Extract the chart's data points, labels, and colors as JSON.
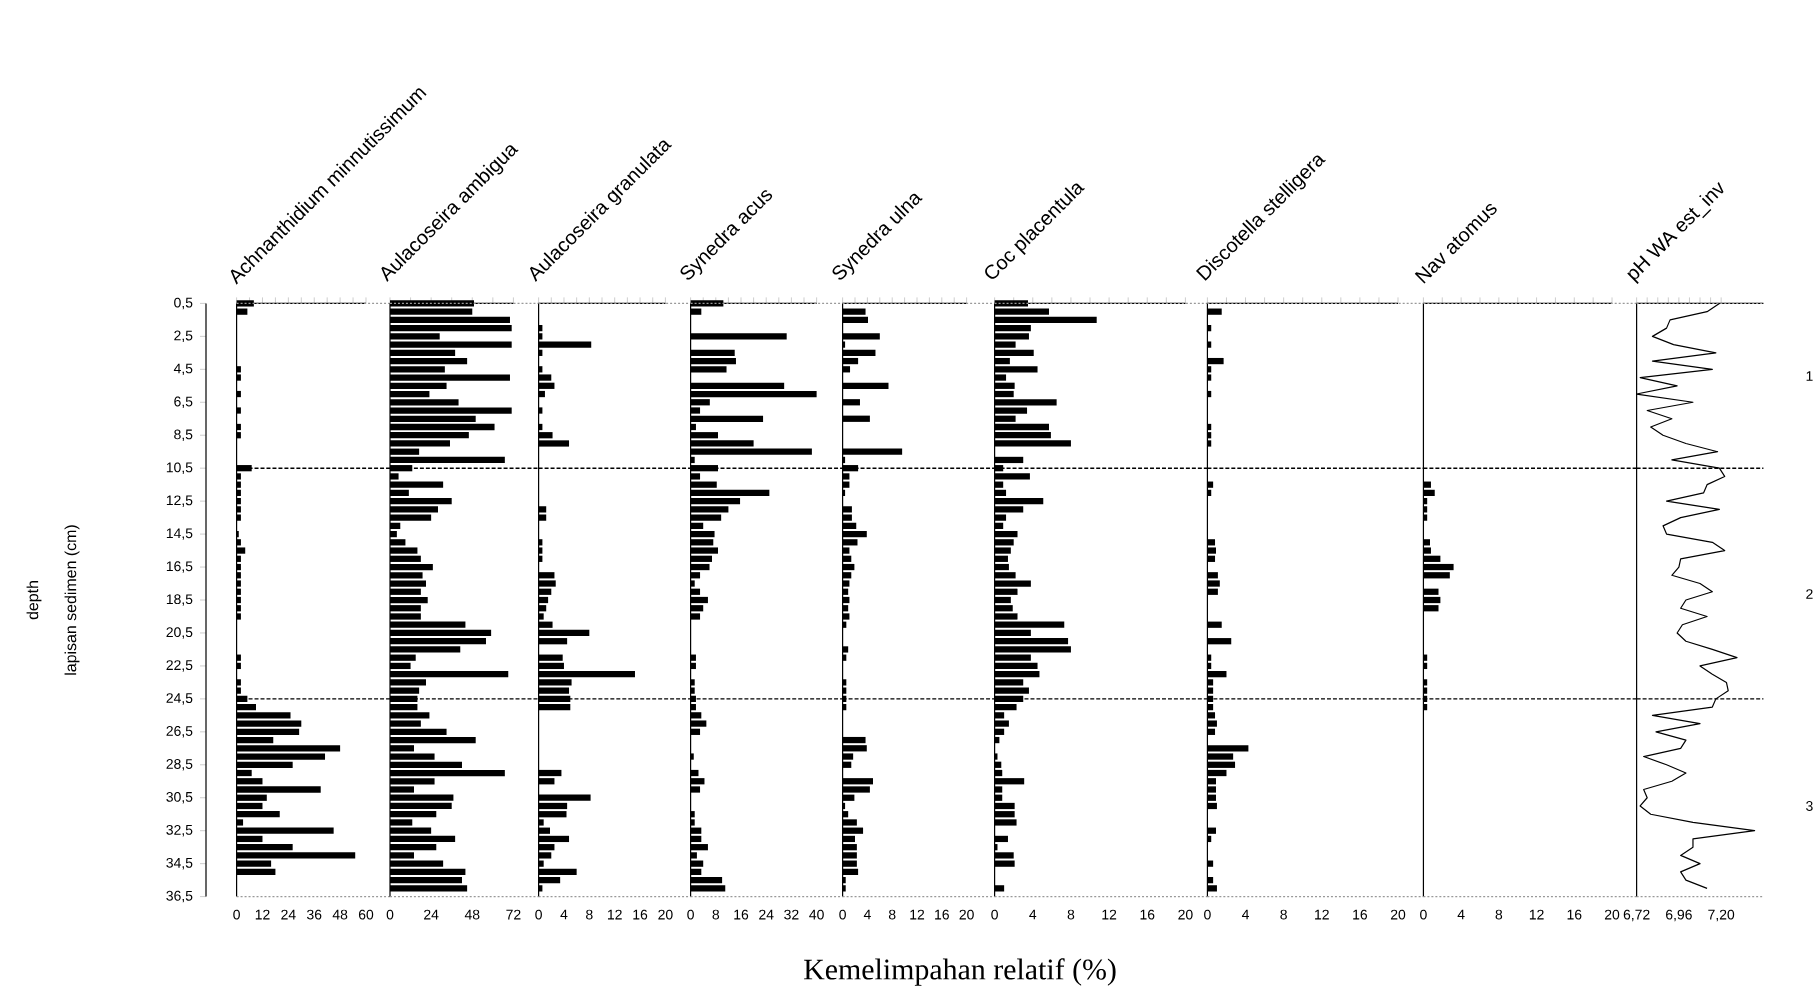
{
  "chart_data": [
    {
      "type": "bar",
      "orientation": "horizontal",
      "title": "Achnanthidium minnutissimum",
      "ylabel": "lapisan sedimen (cm)",
      "annotations": [
        "depth"
      ],
      "color": "#000000",
      "x": [
        0.5,
        1,
        1.5,
        2,
        2.5,
        3,
        3.5,
        4,
        4.5,
        5,
        5.5,
        6,
        6.5,
        7,
        7.5,
        8,
        8.5,
        9,
        9.5,
        10,
        10.5,
        11,
        11.5,
        12,
        12.5,
        13,
        13.5,
        14,
        14.5,
        15,
        15.5,
        16,
        16.5,
        17,
        17.5,
        18,
        18.5,
        19,
        19.5,
        20,
        20.5,
        21,
        21.5,
        22,
        22.5,
        23,
        23.5,
        24,
        24.5,
        25,
        25.5,
        26,
        26.5,
        27,
        27.5,
        28,
        28.5,
        29,
        29.5,
        30,
        30.5,
        31,
        31.5,
        32,
        32.5,
        33,
        33.5,
        34,
        34.5,
        35,
        35.5,
        36
      ],
      "values": [
        8,
        5,
        0,
        0,
        0,
        0,
        0,
        0,
        2,
        2,
        0,
        2,
        0,
        2,
        0,
        2,
        2,
        0,
        0,
        0,
        7,
        2,
        2,
        2,
        2,
        2,
        2,
        0,
        1,
        2,
        4,
        2,
        2,
        2,
        2,
        2,
        2,
        2,
        2,
        0,
        0,
        0,
        0,
        2,
        2,
        0,
        2,
        2,
        5,
        9,
        25,
        30,
        29,
        17,
        48,
        41,
        26,
        7,
        12,
        39,
        14,
        12,
        20,
        3,
        45,
        12,
        26,
        55,
        16,
        18,
        0,
        0
      ],
      "xlim": [
        0,
        60
      ],
      "xticks": [
        0,
        {
          "value": 6,
          "label": null
        },
        12,
        {
          "value": 18,
          "label": null
        },
        24,
        {
          "value": 30,
          "label": null
        },
        36,
        {
          "value": 42,
          "label": null
        },
        48,
        {
          "value": 54,
          "label": null
        },
        60
      ],
      "ylim": [
        36.5,
        0.5
      ],
      "yticks": [
        {
          "value": 0.5,
          "label": "0,5"
        },
        {
          "value": 2.5,
          "label": "2,5"
        },
        {
          "value": 4.5,
          "label": "4,5"
        },
        {
          "value": 6.5,
          "label": "6,5"
        },
        {
          "value": 8.5,
          "label": "8,5"
        },
        {
          "value": 10.5,
          "label": "10,5"
        },
        {
          "value": 12.5,
          "label": "12,5"
        },
        {
          "value": 14.5,
          "label": "14,5"
        },
        {
          "value": 16.5,
          "label": "16,5"
        },
        {
          "value": 18.5,
          "label": "18,5"
        },
        {
          "value": 20.5,
          "label": "20,5"
        },
        {
          "value": 22.5,
          "label": "22,5"
        },
        {
          "value": 24.5,
          "label": "24,5"
        },
        {
          "value": 26.5,
          "label": "26,5"
        },
        {
          "value": 28.5,
          "label": "28,5"
        },
        {
          "value": 30.5,
          "label": "30,5"
        },
        {
          "value": 32.5,
          "label": "32,5"
        },
        {
          "value": 34.5,
          "label": "34,5"
        },
        {
          "value": 36.5,
          "label": "36,5"
        }
      ],
      "ref_lines": [
        {
          "axis": "y",
          "value": 10.5,
          "line_style": "dashed"
        },
        {
          "axis": "y",
          "value": 24.5,
          "line_style": "dashed"
        },
        {
          "axis": "y",
          "value": 0.5,
          "line_style": "dotted",
          "color": "#999999"
        },
        {
          "axis": "y",
          "value": 36.5,
          "line_style": "dotted",
          "color": "#999999"
        }
      ]
    },
    {
      "type": "bar",
      "orientation": "horizontal",
      "title": "Aulacoseira ambigua",
      "color": "#000000",
      "x": [
        0.5,
        1,
        1.5,
        2,
        2.5,
        3,
        3.5,
        4,
        4.5,
        5,
        5.5,
        6,
        6.5,
        7,
        7.5,
        8,
        8.5,
        9,
        9.5,
        10,
        10.5,
        11,
        11.5,
        12,
        12.5,
        13,
        13.5,
        14,
        14.5,
        15,
        15.5,
        16,
        16.5,
        17,
        17.5,
        18,
        18.5,
        19,
        19.5,
        20,
        20.5,
        21,
        21.5,
        22,
        22.5,
        23,
        23.5,
        24,
        24.5,
        25,
        25.5,
        26,
        26.5,
        27,
        27.5,
        28,
        28.5,
        29,
        29.5,
        30,
        30.5,
        31,
        31.5,
        32,
        32.5,
        33,
        33.5,
        34,
        34.5,
        35,
        35.5,
        36
      ],
      "values": [
        49,
        48,
        70,
        71,
        29,
        71,
        38,
        45,
        32,
        70,
        33,
        23,
        40,
        71,
        50,
        61,
        46,
        35,
        17,
        67,
        13,
        5,
        31,
        11,
        36,
        28,
        24,
        6,
        4,
        9,
        16,
        18,
        25,
        19,
        21,
        18,
        22,
        18,
        18,
        44,
        59,
        56,
        41,
        15,
        12,
        69,
        21,
        17,
        16,
        16,
        23,
        18,
        33,
        50,
        14,
        26,
        42,
        67,
        26,
        14,
        37,
        36,
        27,
        13,
        24,
        38,
        27,
        14,
        31,
        44,
        42,
        45
      ],
      "xlim": [
        0,
        72
      ],
      "xticks": [
        0,
        {
          "value": 12,
          "label": null
        },
        24,
        {
          "value": 36,
          "label": null
        },
        48,
        {
          "value": 60,
          "label": null
        },
        72
      ],
      "ylim": [
        36.5,
        0.5
      ],
      "tick_labels": "x",
      "ref_lines": [
        {
          "axis": "y",
          "value": 10.5,
          "line_style": "dashed"
        },
        {
          "axis": "y",
          "value": 24.5,
          "line_style": "dashed"
        },
        {
          "axis": "y",
          "value": 0.5,
          "line_style": "dotted",
          "color": "#999999"
        },
        {
          "axis": "y",
          "value": 36.5,
          "line_style": "dotted",
          "color": "#999999"
        }
      ]
    },
    {
      "type": "bar",
      "orientation": "horizontal",
      "title": "Aulacoseira granulata",
      "color": "#000000",
      "x": [
        0.5,
        1,
        1.5,
        2,
        2.5,
        3,
        3.5,
        4,
        4.5,
        5,
        5.5,
        6,
        6.5,
        7,
        7.5,
        8,
        8.5,
        9,
        9.5,
        10,
        10.5,
        11,
        11.5,
        12,
        12.5,
        13,
        13.5,
        14,
        14.5,
        15,
        15.5,
        16,
        16.5,
        17,
        17.5,
        18,
        18.5,
        19,
        19.5,
        20,
        20.5,
        21,
        21.5,
        22,
        22.5,
        23,
        23.5,
        24,
        24.5,
        25,
        25.5,
        26,
        26.5,
        27,
        27.5,
        28,
        28.5,
        29,
        29.5,
        30,
        30.5,
        31,
        31.5,
        32,
        32.5,
        33,
        33.5,
        34,
        34.5,
        35,
        35.5,
        36
      ],
      "values": [
        0,
        0,
        0,
        0.6,
        0.6,
        8.3,
        0.6,
        0,
        0.6,
        2,
        2.5,
        1,
        0,
        0.6,
        0,
        0.6,
        2.2,
        4.8,
        0,
        0,
        0,
        0,
        0,
        0,
        0,
        1.2,
        1.2,
        0,
        0,
        0.6,
        0.6,
        0.6,
        0,
        2.5,
        2.7,
        2,
        1.5,
        1.2,
        0.8,
        2.2,
        8,
        4.5,
        0,
        3.8,
        4,
        15.2,
        5.2,
        4.8,
        5,
        5,
        0,
        0,
        0,
        0,
        0,
        0,
        0,
        3.6,
        2.5,
        0,
        8.2,
        4.5,
        4.4,
        0.8,
        1.8,
        4.8,
        2.5,
        2,
        0.8,
        6,
        3.4,
        0.6
      ],
      "xlim": [
        0,
        20
      ],
      "xticks": [
        0,
        {
          "value": 2,
          "label": null
        },
        4,
        {
          "value": 6,
          "label": null
        },
        8,
        {
          "value": 10,
          "label": null
        },
        12,
        {
          "value": 14,
          "label": null
        },
        16,
        {
          "value": 18,
          "label": null
        },
        20
      ],
      "ylim": [
        36.5,
        0.5
      ],
      "tick_labels": "x",
      "ref_lines": [
        {
          "axis": "y",
          "value": 10.5,
          "line_style": "dashed"
        },
        {
          "axis": "y",
          "value": 24.5,
          "line_style": "dashed"
        },
        {
          "axis": "y",
          "value": 0.5,
          "line_style": "dotted",
          "color": "#999999"
        },
        {
          "axis": "y",
          "value": 36.5,
          "line_style": "dotted",
          "color": "#999999"
        }
      ]
    },
    {
      "type": "bar",
      "orientation": "horizontal",
      "title": "Synedra acus",
      "color": "#000000",
      "x": [
        0.5,
        1,
        1.5,
        2,
        2.5,
        3,
        3.5,
        4,
        4.5,
        5,
        5.5,
        6,
        6.5,
        7,
        7.5,
        8,
        8.5,
        9,
        9.5,
        10,
        10.5,
        11,
        11.5,
        12,
        12.5,
        13,
        13.5,
        14,
        14.5,
        15,
        15.5,
        16,
        16.5,
        17,
        17.5,
        18,
        18.5,
        19,
        19.5,
        20,
        20.5,
        21,
        21.5,
        22,
        22.5,
        23,
        23.5,
        24,
        24.5,
        25,
        25.5,
        26,
        26.5,
        27,
        27.5,
        28,
        28.5,
        29,
        29.5,
        30,
        30.5,
        31,
        31.5,
        32,
        32.5,
        33,
        33.5,
        34,
        34.5,
        35,
        35.5,
        36
      ],
      "values": [
        10.4,
        3.4,
        0,
        0,
        30.5,
        0,
        14,
        14.4,
        11.4,
        0,
        29.7,
        40,
        6.1,
        3,
        23,
        1.7,
        8.7,
        20,
        38.5,
        1.3,
        8.7,
        3,
        8.3,
        25,
        15.7,
        12,
        9.7,
        4,
        7.6,
        7.2,
        8.7,
        6.8,
        6,
        3,
        1.3,
        3,
        5.5,
        4,
        3,
        0,
        0,
        0,
        0,
        1.7,
        1.7,
        0,
        1.3,
        1.3,
        1.7,
        1.7,
        3.4,
        5,
        3,
        0,
        0,
        1,
        0,
        2.5,
        4.4,
        3,
        0,
        0,
        1.3,
        1.3,
        3.4,
        3.4,
        5.5,
        2,
        4,
        3.4,
        10,
        11
      ],
      "xlim": [
        0,
        40
      ],
      "xticks": [
        0,
        {
          "value": 4,
          "label": null
        },
        8,
        {
          "value": 12,
          "label": null
        },
        16,
        {
          "value": 20,
          "label": null
        },
        24,
        {
          "value": 28,
          "label": null
        },
        32,
        {
          "value": 36,
          "label": null
        },
        40
      ],
      "ylim": [
        36.5,
        0.5
      ],
      "tick_labels": "x",
      "ref_lines": [
        {
          "axis": "y",
          "value": 10.5,
          "line_style": "dashed"
        },
        {
          "axis": "y",
          "value": 24.5,
          "line_style": "dashed"
        },
        {
          "axis": "y",
          "value": 0.5,
          "line_style": "dotted",
          "color": "#999999"
        },
        {
          "axis": "y",
          "value": 36.5,
          "line_style": "dotted",
          "color": "#999999"
        }
      ]
    },
    {
      "type": "bar",
      "orientation": "horizontal",
      "title": "Synedra ulna",
      "xlabel": "Kemelimpahan relatif (%)",
      "color": "#000000",
      "x": [
        0.5,
        1,
        1.5,
        2,
        2.5,
        3,
        3.5,
        4,
        4.5,
        5,
        5.5,
        6,
        6.5,
        7,
        7.5,
        8,
        8.5,
        9,
        9.5,
        10,
        10.5,
        11,
        11.5,
        12,
        12.5,
        13,
        13.5,
        14,
        14.5,
        15,
        15.5,
        16,
        16.5,
        17,
        17.5,
        18,
        18.5,
        19,
        19.5,
        20,
        20.5,
        21,
        21.5,
        22,
        22.5,
        23,
        23.5,
        24,
        24.5,
        25,
        25.5,
        26,
        26.5,
        27,
        27.5,
        28,
        28.5,
        29,
        29.5,
        30,
        30.5,
        31,
        31.5,
        32,
        32.5,
        33,
        33.5,
        34,
        34.5,
        35,
        35.5,
        36
      ],
      "values": [
        0,
        3.7,
        4.1,
        0,
        6,
        0.4,
        5.3,
        2.5,
        1.2,
        0,
        7.4,
        0,
        2.8,
        0,
        4.4,
        0,
        0,
        0,
        9.6,
        0.4,
        2.5,
        1.1,
        1.1,
        0.4,
        0,
        1.5,
        1.5,
        2.2,
        3.9,
        2.4,
        1.1,
        1.4,
        1.9,
        1.4,
        1.1,
        0.9,
        1.1,
        0.9,
        1.1,
        0.6,
        0,
        0,
        0.9,
        0.6,
        0,
        0,
        0.6,
        0.6,
        0.6,
        0.6,
        0,
        0,
        0,
        3.7,
        3.9,
        1.7,
        1.4,
        0,
        4.9,
        4.4,
        1.9,
        0.4,
        0.9,
        2.3,
        3.3,
        2,
        2.3,
        2.3,
        2.3,
        2.5,
        0.5,
        0.5
      ],
      "xlim": [
        0,
        20
      ],
      "xticks": [
        0,
        {
          "value": 2,
          "label": null
        },
        4,
        {
          "value": 6,
          "label": null
        },
        8,
        {
          "value": 10,
          "label": null
        },
        12,
        {
          "value": 14,
          "label": null
        },
        16,
        {
          "value": 18,
          "label": null
        },
        20
      ],
      "ylim": [
        36.5,
        0.5
      ],
      "tick_labels": "x",
      "ref_lines": [
        {
          "axis": "y",
          "value": 10.5,
          "line_style": "dashed"
        },
        {
          "axis": "y",
          "value": 24.5,
          "line_style": "dashed"
        },
        {
          "axis": "y",
          "value": 0.5,
          "line_style": "dotted",
          "color": "#999999"
        },
        {
          "axis": "y",
          "value": 36.5,
          "line_style": "dotted",
          "color": "#999999"
        }
      ]
    },
    {
      "type": "bar",
      "orientation": "horizontal",
      "title": "Coc placentula",
      "color": "#000000",
      "x": [
        0.5,
        1,
        1.5,
        2,
        2.5,
        3,
        3.5,
        4,
        4.5,
        5,
        5.5,
        6,
        6.5,
        7,
        7.5,
        8,
        8.5,
        9,
        9.5,
        10,
        10.5,
        11,
        11.5,
        12,
        12.5,
        13,
        13.5,
        14,
        14.5,
        15,
        15.5,
        16,
        16.5,
        17,
        17.5,
        18,
        18.5,
        19,
        19.5,
        20,
        20.5,
        21,
        21.5,
        22,
        22.5,
        23,
        23.5,
        24,
        24.5,
        25,
        25.5,
        26,
        26.5,
        27,
        27.5,
        28,
        28.5,
        29,
        29.5,
        30,
        30.5,
        31,
        31.5,
        32,
        32.5,
        33,
        33.5,
        34,
        34.5,
        35,
        35.5,
        36
      ],
      "values": [
        3.5,
        5.7,
        10.7,
        3.8,
        3.6,
        2.2,
        4.1,
        1.6,
        4.5,
        1.2,
        2.1,
        2,
        6.5,
        3.4,
        2.2,
        5.7,
        5.9,
        8,
        0,
        3,
        0.9,
        3.7,
        0.9,
        1.2,
        5.1,
        3,
        1.2,
        0.9,
        2.4,
        2,
        1.7,
        1.4,
        1.5,
        2.2,
        3.8,
        2.4,
        1.7,
        1.9,
        2.4,
        7.3,
        3.8,
        7.7,
        8,
        3.8,
        4.5,
        4.7,
        3,
        3.6,
        3,
        2.3,
        1,
        1.5,
        1,
        0.5,
        0,
        0.3,
        0.7,
        0.8,
        3.1,
        0.8,
        0.8,
        2.1,
        2.1,
        2.3,
        0,
        1.4,
        0.3,
        2,
        2.1,
        0,
        0,
        1
      ],
      "xlim": [
        0,
        20
      ],
      "xticks": [
        0,
        {
          "value": 2,
          "label": null
        },
        4,
        {
          "value": 6,
          "label": null
        },
        8,
        {
          "value": 10,
          "label": null
        },
        12,
        {
          "value": 14,
          "label": null
        },
        16,
        {
          "value": 18,
          "label": null
        },
        20
      ],
      "ylim": [
        36.5,
        0.5
      ],
      "tick_labels": "x",
      "ref_lines": [
        {
          "axis": "y",
          "value": 10.5,
          "line_style": "dashed"
        },
        {
          "axis": "y",
          "value": 24.5,
          "line_style": "dashed"
        },
        {
          "axis": "y",
          "value": 0.5,
          "line_style": "dotted",
          "color": "#999999"
        },
        {
          "axis": "y",
          "value": 36.5,
          "line_style": "dotted",
          "color": "#999999"
        }
      ]
    },
    {
      "type": "bar",
      "orientation": "horizontal",
      "title": "Discotella stelligera",
      "color": "#000000",
      "x": [
        0.5,
        1,
        1.5,
        2,
        2.5,
        3,
        3.5,
        4,
        4.5,
        5,
        5.5,
        6,
        6.5,
        7,
        7.5,
        8,
        8.5,
        9,
        9.5,
        10,
        10.5,
        11,
        11.5,
        12,
        12.5,
        13,
        13.5,
        14,
        14.5,
        15,
        15.5,
        16,
        16.5,
        17,
        17.5,
        18,
        18.5,
        19,
        19.5,
        20,
        20.5,
        21,
        21.5,
        22,
        22.5,
        23,
        23.5,
        24,
        24.5,
        25,
        25.5,
        26,
        26.5,
        27,
        27.5,
        28,
        28.5,
        29,
        29.5,
        30,
        30.5,
        31,
        31.5,
        32,
        32.5,
        33,
        33.5,
        34,
        34.5,
        35,
        35.5,
        36
      ],
      "values": [
        0,
        1.5,
        0,
        0.4,
        0,
        0.4,
        0,
        1.7,
        0.4,
        0.4,
        0,
        0.4,
        0,
        0,
        0,
        0.4,
        0.4,
        0.4,
        0,
        0,
        0,
        0,
        0.6,
        0.4,
        0,
        0,
        0,
        0,
        0,
        0.8,
        0.9,
        0.8,
        0,
        1.1,
        1.3,
        1.1,
        0,
        0,
        0,
        1.5,
        0,
        2.5,
        0,
        0.4,
        0.4,
        2,
        0.6,
        0.6,
        0.6,
        0.6,
        0.8,
        1,
        0.8,
        0,
        4.3,
        2.7,
        2.9,
        2,
        0.9,
        0.9,
        0.9,
        1,
        0,
        0,
        0.9,
        0.4,
        0,
        0,
        0.6,
        0,
        0.6,
        1
      ],
      "xlim": [
        0,
        20
      ],
      "xticks": [
        0,
        {
          "value": 2,
          "label": null
        },
        4,
        {
          "value": 6,
          "label": null
        },
        8,
        {
          "value": 10,
          "label": null
        },
        12,
        {
          "value": 14,
          "label": null
        },
        16,
        {
          "value": 18,
          "label": null
        },
        20
      ],
      "ylim": [
        36.5,
        0.5
      ],
      "tick_labels": "x",
      "ref_lines": [
        {
          "axis": "y",
          "value": 10.5,
          "line_style": "dashed"
        },
        {
          "axis": "y",
          "value": 24.5,
          "line_style": "dashed"
        },
        {
          "axis": "y",
          "value": 0.5,
          "line_style": "dotted",
          "color": "#999999"
        },
        {
          "axis": "y",
          "value": 36.5,
          "line_style": "dotted",
          "color": "#999999"
        }
      ]
    },
    {
      "type": "bar",
      "orientation": "horizontal",
      "title": "Nav atomus",
      "color": "#000000",
      "x": [
        0.5,
        1,
        1.5,
        2,
        2.5,
        3,
        3.5,
        4,
        4.5,
        5,
        5.5,
        6,
        6.5,
        7,
        7.5,
        8,
        8.5,
        9,
        9.5,
        10,
        10.5,
        11,
        11.5,
        12,
        12.5,
        13,
        13.5,
        14,
        14.5,
        15,
        15.5,
        16,
        16.5,
        17,
        17.5,
        18,
        18.5,
        19,
        19.5,
        20,
        20.5,
        21,
        21.5,
        22,
        22.5,
        23,
        23.5,
        24,
        24.5,
        25,
        25.5,
        26,
        26.5,
        27,
        27.5,
        28,
        28.5,
        29,
        29.5,
        30,
        30.5,
        31,
        31.5,
        32,
        32.5,
        33,
        33.5,
        34,
        34.5,
        35,
        35.5,
        36
      ],
      "values": [
        0,
        0,
        0,
        0,
        0,
        0,
        0,
        0,
        0,
        0,
        0,
        0,
        0,
        0,
        0,
        0,
        0,
        0,
        0,
        0,
        0,
        0,
        0.8,
        1.2,
        0.4,
        0.4,
        0.4,
        0,
        0,
        0.7,
        0.8,
        1.8,
        3.2,
        2.8,
        0,
        1.6,
        1.8,
        1.6,
        0,
        0,
        0,
        0,
        0,
        0.4,
        0.4,
        0,
        0.4,
        0.4,
        0.4,
        0.4,
        0,
        0,
        0,
        0,
        0,
        0,
        0,
        0,
        0,
        0,
        0,
        0,
        0,
        0,
        0,
        0,
        0,
        0,
        0,
        0,
        0,
        0
      ],
      "xlim": [
        0,
        20
      ],
      "xticks": [
        0,
        {
          "value": 2,
          "label": null
        },
        4,
        {
          "value": 6,
          "label": null
        },
        8,
        {
          "value": 10,
          "label": null
        },
        12,
        {
          "value": 14,
          "label": null
        },
        16,
        {
          "value": 18,
          "label": null
        },
        20
      ],
      "ylim": [
        36.5,
        0.5
      ],
      "tick_labels": "x",
      "ref_lines": [
        {
          "axis": "y",
          "value": 10.5,
          "line_style": "dashed"
        },
        {
          "axis": "y",
          "value": 24.5,
          "line_style": "dashed"
        },
        {
          "axis": "y",
          "value": 0.5,
          "line_style": "dotted",
          "color": "#999999"
        },
        {
          "axis": "y",
          "value": 36.5,
          "line_style": "dotted",
          "color": "#999999"
        }
      ]
    },
    {
      "type": "line",
      "orientation": "horizontal",
      "title": "pH WA est_inv",
      "color": "#000000",
      "x": [
        0.5,
        1,
        1.5,
        2,
        2.5,
        3,
        3.5,
        4,
        4.5,
        5,
        5.5,
        6,
        6.5,
        7,
        7.5,
        8,
        8.5,
        9,
        9.5,
        10,
        10.5,
        11,
        11.5,
        12,
        12.5,
        13,
        13.5,
        14,
        14.5,
        15,
        15.5,
        16,
        16.5,
        17,
        17.5,
        18,
        18.5,
        19,
        19.5,
        20,
        20.5,
        21,
        21.5,
        22,
        22.5,
        23,
        23.5,
        24,
        24.5,
        25,
        25.5,
        26,
        26.5,
        27,
        27.5,
        28,
        28.5,
        29,
        29.5,
        30,
        30.5,
        31,
        31.5,
        32,
        32.5,
        33,
        33.5,
        34,
        34.5,
        35,
        35.5,
        36
      ],
      "values": [
        7.19,
        7.12,
        6.91,
        6.89,
        6.81,
        6.93,
        7.17,
        6.81,
        7.15,
        6.74,
        6.95,
        6.72,
        7.04,
        6.78,
        6.92,
        6.8,
        6.87,
        7.0,
        7.18,
        6.92,
        7.19,
        7.22,
        7.12,
        7.1,
        6.89,
        7.19,
        6.97,
        6.87,
        6.89,
        7.15,
        7.22,
        6.97,
        6.96,
        6.92,
        7.08,
        7.15,
        7.0,
        6.97,
        7.12,
        6.98,
        6.95,
        7.0,
        7.15,
        7.29,
        7.08,
        7.15,
        7.23,
        7.24,
        7.17,
        7.15,
        6.81,
        7.08,
        6.83,
        7.0,
        6.97,
        6.76,
        6.89,
        7.0,
        6.92,
        6.76,
        6.78,
        6.74,
        6.8,
        7.04,
        7.39,
        7.04,
        7.04,
        6.97,
        7.08,
        6.97,
        7.0,
        7.12
      ],
      "xlim": [
        6.72,
        7.44
      ],
      "xticks": [
        {
          "value": 6.72,
          "label": "6,72"
        },
        {
          "value": 6.78,
          "label": null
        },
        {
          "value": 6.84,
          "label": null
        },
        {
          "value": 6.9,
          "label": null
        },
        {
          "value": 6.96,
          "label": "6,96"
        },
        {
          "value": 7.02,
          "label": null
        },
        {
          "value": 7.08,
          "label": null
        },
        {
          "value": 7.14,
          "label": null
        },
        {
          "value": 7.2,
          "label": "7,20"
        }
      ],
      "ylim": [
        36.5,
        0.5
      ],
      "tick_labels": "x",
      "ref_lines": [
        {
          "axis": "y",
          "value": 10.5,
          "line_style": "dashed"
        },
        {
          "axis": "y",
          "value": 24.5,
          "line_style": "dashed"
        },
        {
          "axis": "y",
          "value": 0.5,
          "line_style": "dotted",
          "color": "#999999"
        },
        {
          "axis": "y",
          "value": 36.5,
          "line_style": "dotted",
          "color": "#999999"
        }
      ],
      "annotations": [
        "1",
        "2",
        "3"
      ]
    }
  ]
}
